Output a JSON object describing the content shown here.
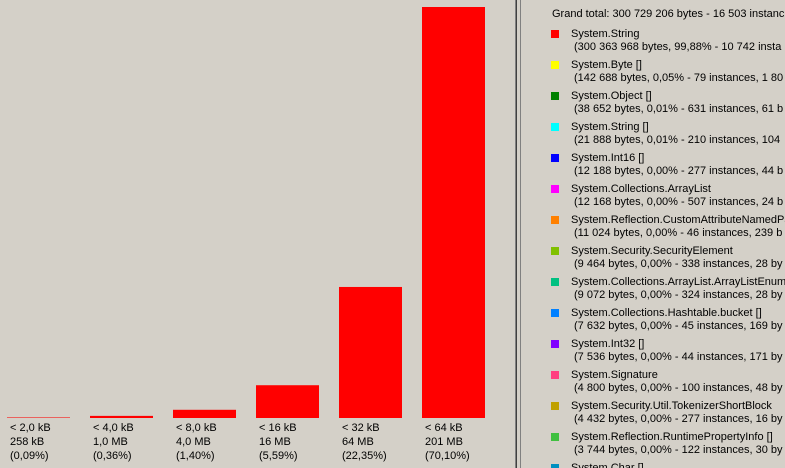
{
  "chart_data": {
    "type": "bar",
    "color": "#ff0000",
    "categories": [
      "< 2,0 kB",
      "< 4,0 kB",
      "< 8,0 kB",
      "< 16 kB",
      "< 32 kB",
      "< 64 kB"
    ],
    "sizes": [
      "258 kB",
      "1,0 MB",
      "4,0 MB",
      "16 MB",
      "64 MB",
      "201 MB"
    ],
    "values": [
      0.09,
      0.36,
      1.4,
      5.59,
      22.35,
      70.1
    ],
    "value_labels": [
      "(0,09%)",
      "(0,36%)",
      "(1,40%)",
      "(5,59%)",
      "(22,35%)",
      "(70,10%)"
    ]
  },
  "legend": {
    "total": "Grand total: 300 729 206 bytes - 16 503 instanc",
    "items": [
      {
        "name": "System.String",
        "detail": "(300 363 968 bytes, 99,88% - 10 742 insta",
        "color": "#ff0000"
      },
      {
        "name": "System.Byte []",
        "detail": "(142 688 bytes, 0,05% - 79 instances, 1 80",
        "color": "#ffff00"
      },
      {
        "name": "System.Object []",
        "detail": "(38 652 bytes, 0,01% - 631 instances, 61 b",
        "color": "#008000"
      },
      {
        "name": "System.String []",
        "detail": "(21 888 bytes, 0,01% - 210 instances, 104",
        "color": "#00ffff"
      },
      {
        "name": "System.Int16 []",
        "detail": "(12 188 bytes, 0,00% - 277 instances, 44 b",
        "color": "#0000ff"
      },
      {
        "name": "System.Collections.ArrayList",
        "detail": "(12 168 bytes, 0,00% - 507 instances, 24 b",
        "color": "#ff00ff"
      },
      {
        "name": "System.Reflection.CustomAttributeNamedPa",
        "detail": "(11 024 bytes, 0,00% - 46 instances, 239 b",
        "color": "#ff8000"
      },
      {
        "name": "System.Security.SecurityElement",
        "detail": "(9 464 bytes, 0,00% - 338 instances, 28 by",
        "color": "#80c000"
      },
      {
        "name": "System.Collections.ArrayList.ArrayListEnume",
        "detail": "(9 072 bytes, 0,00% - 324 instances, 28 by",
        "color": "#00c080"
      },
      {
        "name": "System.Collections.Hashtable.bucket []",
        "detail": "(7 632 bytes, 0,00% - 45 instances, 169 by",
        "color": "#0080ff"
      },
      {
        "name": "System.Int32 []",
        "detail": "(7 536 bytes, 0,00% - 44 instances, 171 by",
        "color": "#8000ff"
      },
      {
        "name": "System.Signature",
        "detail": "(4 800 bytes, 0,00% - 100 instances, 48 by",
        "color": "#ff4080"
      },
      {
        "name": "System.Security.Util.TokenizerShortBlock",
        "detail": "(4 432 bytes, 0,00% - 277 instances, 16 by",
        "color": "#c0a000"
      },
      {
        "name": "System.Reflection.RuntimePropertyInfo []",
        "detail": "(3 744 bytes, 0,00% - 122 instances, 30 by",
        "color": "#40c040"
      },
      {
        "name": "System.Char []",
        "color": "#0090c0"
      }
    ]
  }
}
